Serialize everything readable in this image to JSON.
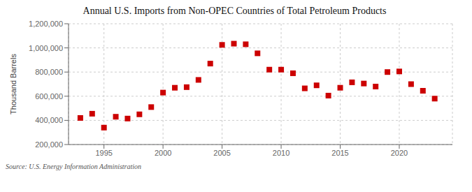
{
  "chart_data": {
    "type": "scatter",
    "title": "Annual U.S. Imports from Non-OPEC Countries of Total Petroleum Products",
    "ylabel": "Thousand Barrels",
    "annotations": [
      "Source: U.S. Energy Information Administration"
    ],
    "x": [
      1993,
      1994,
      1995,
      1996,
      1997,
      1998,
      1999,
      2000,
      2001,
      2002,
      2003,
      2004,
      2005,
      2006,
      2007,
      2008,
      2009,
      2010,
      2011,
      2012,
      2013,
      2014,
      2015,
      2016,
      2017,
      2018,
      2019,
      2020,
      2021,
      2022,
      2023
    ],
    "values": [
      420000,
      455000,
      340000,
      430000,
      415000,
      450000,
      510000,
      630000,
      670000,
      675000,
      735000,
      870000,
      1025000,
      1035000,
      1030000,
      955000,
      820000,
      820000,
      790000,
      665000,
      690000,
      605000,
      670000,
      715000,
      705000,
      680000,
      800000,
      805000,
      700000,
      645000,
      580000
    ],
    "color": "#CC0000",
    "marker": "square",
    "xlim": [
      1992.0,
      2024.5
    ],
    "xticks": [
      1995,
      2000,
      2005,
      2010,
      2015,
      2020
    ],
    "ylim": [
      200000,
      1200000
    ],
    "yticks": [
      {
        "value": 200000,
        "label": "200,000"
      },
      {
        "value": 400000,
        "label": "400,000"
      },
      {
        "value": 600000,
        "label": "600,000"
      },
      {
        "value": 800000,
        "label": "800,000"
      },
      {
        "value": 1000000,
        "label": "1,000,000"
      },
      {
        "value": 1200000,
        "label": "1,200,000"
      }
    ],
    "grid": true
  }
}
